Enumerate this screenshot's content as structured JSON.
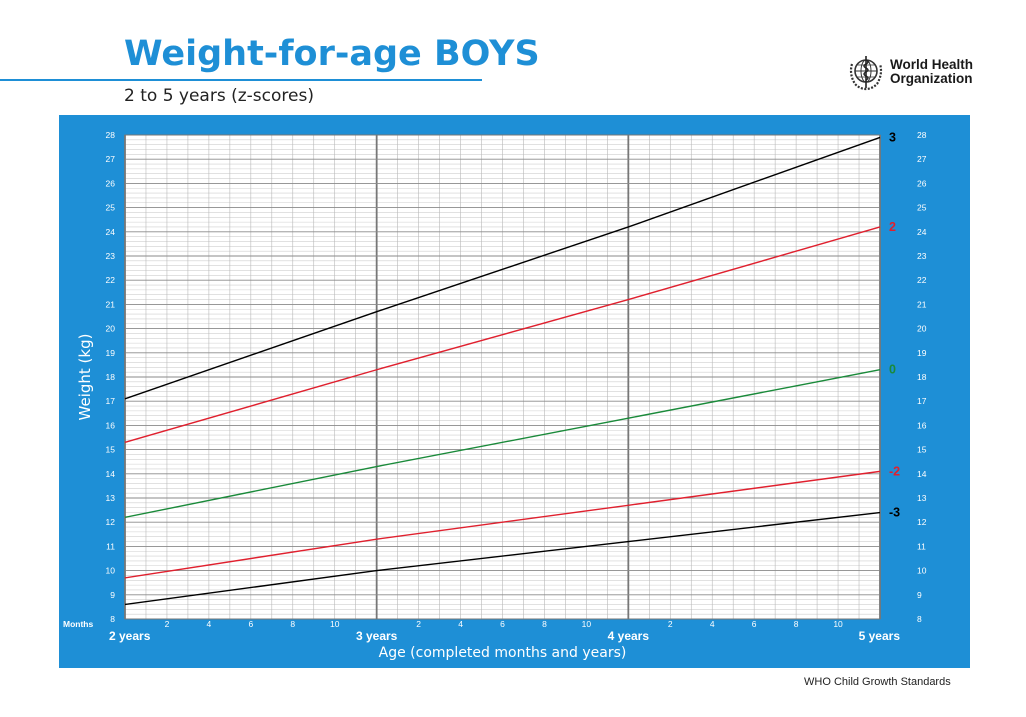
{
  "header": {
    "title": "Weight-for-age BOYS",
    "subtitle": "2 to 5 years (z-scores)",
    "org_line1": "World Health",
    "org_line2": "Organization"
  },
  "footer": "WHO Child Growth Standards",
  "colors": {
    "panel": "#1e8fd6",
    "z3": "#000000",
    "z2": "#e0202e",
    "z0": "#1a8a3a"
  },
  "chart_data": {
    "type": "line",
    "xlabel": "Age (completed months and years)",
    "ylabel": "Weight (kg)",
    "xlim": [
      24,
      60
    ],
    "ylim": [
      8,
      28
    ],
    "x_tick_values": [
      26,
      28,
      30,
      32,
      34,
      38,
      40,
      42,
      44,
      46,
      50,
      52,
      54,
      56,
      58
    ],
    "x_tick_labels": [
      "2",
      "4",
      "6",
      "8",
      "10",
      "2",
      "4",
      "6",
      "8",
      "10",
      "2",
      "4",
      "6",
      "8",
      "10"
    ],
    "x_months_label": "Months",
    "year_labels": [
      {
        "x": 24,
        "label": "2 years"
      },
      {
        "x": 36,
        "label": "3 years"
      },
      {
        "x": 48,
        "label": "4 years"
      },
      {
        "x": 60,
        "label": "5 years"
      }
    ],
    "y_ticks": [
      8,
      9,
      10,
      11,
      12,
      13,
      14,
      15,
      16,
      17,
      18,
      19,
      20,
      21,
      22,
      23,
      24,
      25,
      26,
      27,
      28
    ],
    "grid": true,
    "series": [
      {
        "name": "3",
        "color": "#000000",
        "x": [
          24,
          36,
          48,
          60
        ],
        "y": [
          17.1,
          20.7,
          24.2,
          27.9
        ]
      },
      {
        "name": "2",
        "color": "#e0202e",
        "x": [
          24,
          36,
          48,
          60
        ],
        "y": [
          15.3,
          18.3,
          21.2,
          24.2
        ]
      },
      {
        "name": "0",
        "color": "#1a8a3a",
        "x": [
          24,
          36,
          48,
          60
        ],
        "y": [
          12.2,
          14.3,
          16.3,
          18.3
        ]
      },
      {
        "name": "-2",
        "color": "#e0202e",
        "x": [
          24,
          36,
          48,
          60
        ],
        "y": [
          9.7,
          11.3,
          12.7,
          14.1
        ]
      },
      {
        "name": "-3",
        "color": "#000000",
        "x": [
          24,
          36,
          48,
          60
        ],
        "y": [
          8.6,
          10.0,
          11.2,
          12.4
        ]
      }
    ]
  }
}
